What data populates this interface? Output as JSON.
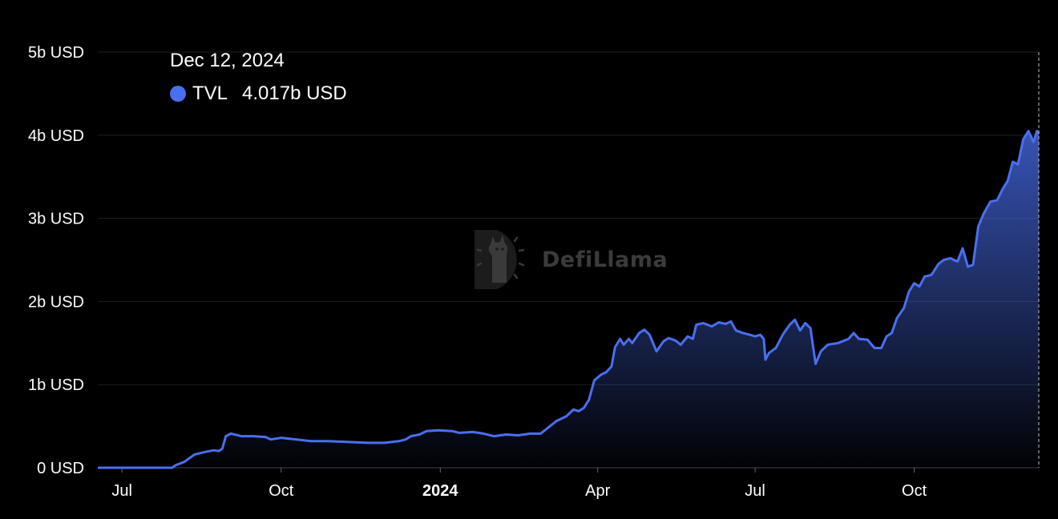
{
  "chart_data": {
    "type": "area",
    "title": "",
    "xlabel": "",
    "ylabel": "",
    "y_unit": "USD",
    "ylim": [
      0,
      5
    ],
    "y_ticks": [
      {
        "value": 0,
        "label": "0 USD"
      },
      {
        "value": 1,
        "label": "1b USD"
      },
      {
        "value": 2,
        "label": "2b USD"
      },
      {
        "value": 3,
        "label": "3b USD"
      },
      {
        "value": 4,
        "label": "4b USD"
      },
      {
        "value": 5,
        "label": "5b USD"
      }
    ],
    "xlim": [
      "2023-06-17",
      "2024-12-12"
    ],
    "x_ticks": [
      {
        "date": "2023-07-01",
        "label": "Jul",
        "bold": false
      },
      {
        "date": "2023-10-01",
        "label": "Oct",
        "bold": false
      },
      {
        "date": "2024-01-01",
        "label": "2024",
        "bold": true
      },
      {
        "date": "2024-04-01",
        "label": "Apr",
        "bold": false
      },
      {
        "date": "2024-07-01",
        "label": "Jul",
        "bold": false
      },
      {
        "date": "2024-10-01",
        "label": "Oct",
        "bold": false
      }
    ],
    "grid": "horizontal",
    "series": [
      {
        "name": "TVL",
        "color": "#4a6ff0",
        "points": [
          [
            "2023-06-17",
            0.0
          ],
          [
            "2023-07-30",
            0.0
          ],
          [
            "2023-08-01",
            0.03
          ],
          [
            "2023-08-06",
            0.07
          ],
          [
            "2023-08-12",
            0.16
          ],
          [
            "2023-08-18",
            0.19
          ],
          [
            "2023-08-23",
            0.21
          ],
          [
            "2023-08-26",
            0.2
          ],
          [
            "2023-08-28",
            0.23
          ],
          [
            "2023-08-30",
            0.38
          ],
          [
            "2023-09-02",
            0.41
          ],
          [
            "2023-09-08",
            0.38
          ],
          [
            "2023-09-15",
            0.38
          ],
          [
            "2023-09-22",
            0.37
          ],
          [
            "2023-09-25",
            0.34
          ],
          [
            "2023-10-01",
            0.36
          ],
          [
            "2023-10-10",
            0.34
          ],
          [
            "2023-10-18",
            0.32
          ],
          [
            "2023-10-28",
            0.32
          ],
          [
            "2023-11-08",
            0.31
          ],
          [
            "2023-11-20",
            0.3
          ],
          [
            "2023-11-30",
            0.3
          ],
          [
            "2023-12-08",
            0.32
          ],
          [
            "2023-12-12",
            0.34
          ],
          [
            "2023-12-15",
            0.38
          ],
          [
            "2023-12-20",
            0.4
          ],
          [
            "2023-12-24",
            0.44
          ],
          [
            "2023-12-31",
            0.45
          ],
          [
            "2024-01-08",
            0.44
          ],
          [
            "2024-01-12",
            0.42
          ],
          [
            "2024-01-20",
            0.43
          ],
          [
            "2024-01-26",
            0.41
          ],
          [
            "2024-02-01",
            0.38
          ],
          [
            "2024-02-08",
            0.4
          ],
          [
            "2024-02-15",
            0.39
          ],
          [
            "2024-02-22",
            0.41
          ],
          [
            "2024-02-28",
            0.41
          ],
          [
            "2024-03-02",
            0.46
          ],
          [
            "2024-03-08",
            0.56
          ],
          [
            "2024-03-14",
            0.62
          ],
          [
            "2024-03-18",
            0.7
          ],
          [
            "2024-03-21",
            0.68
          ],
          [
            "2024-03-24",
            0.72
          ],
          [
            "2024-03-27",
            0.82
          ],
          [
            "2024-03-30",
            1.05
          ],
          [
            "2024-04-03",
            1.12
          ],
          [
            "2024-04-06",
            1.15
          ],
          [
            "2024-04-09",
            1.22
          ],
          [
            "2024-04-11",
            1.45
          ],
          [
            "2024-04-14",
            1.55
          ],
          [
            "2024-04-16",
            1.48
          ],
          [
            "2024-04-19",
            1.55
          ],
          [
            "2024-04-21",
            1.5
          ],
          [
            "2024-04-25",
            1.62
          ],
          [
            "2024-04-28",
            1.66
          ],
          [
            "2024-05-01",
            1.6
          ],
          [
            "2024-05-05",
            1.4
          ],
          [
            "2024-05-09",
            1.52
          ],
          [
            "2024-05-12",
            1.56
          ],
          [
            "2024-05-16",
            1.53
          ],
          [
            "2024-05-19",
            1.48
          ],
          [
            "2024-05-23",
            1.58
          ],
          [
            "2024-05-26",
            1.55
          ],
          [
            "2024-05-28",
            1.72
          ],
          [
            "2024-06-01",
            1.74
          ],
          [
            "2024-06-06",
            1.7
          ],
          [
            "2024-06-10",
            1.75
          ],
          [
            "2024-06-14",
            1.73
          ],
          [
            "2024-06-17",
            1.76
          ],
          [
            "2024-06-20",
            1.65
          ],
          [
            "2024-06-24",
            1.62
          ],
          [
            "2024-06-28",
            1.6
          ],
          [
            "2024-07-01",
            1.58
          ],
          [
            "2024-07-04",
            1.6
          ],
          [
            "2024-07-06",
            1.55
          ],
          [
            "2024-07-07",
            1.3
          ],
          [
            "2024-07-09",
            1.38
          ],
          [
            "2024-07-13",
            1.44
          ],
          [
            "2024-07-17",
            1.6
          ],
          [
            "2024-07-21",
            1.72
          ],
          [
            "2024-07-24",
            1.78
          ],
          [
            "2024-07-27",
            1.65
          ],
          [
            "2024-07-30",
            1.74
          ],
          [
            "2024-08-02",
            1.68
          ],
          [
            "2024-08-05",
            1.25
          ],
          [
            "2024-08-08",
            1.4
          ],
          [
            "2024-08-12",
            1.48
          ],
          [
            "2024-08-18",
            1.5
          ],
          [
            "2024-08-24",
            1.55
          ],
          [
            "2024-08-27",
            1.62
          ],
          [
            "2024-08-30",
            1.55
          ],
          [
            "2024-09-04",
            1.54
          ],
          [
            "2024-09-08",
            1.44
          ],
          [
            "2024-09-12",
            1.44
          ],
          [
            "2024-09-15",
            1.58
          ],
          [
            "2024-09-18",
            1.62
          ],
          [
            "2024-09-21",
            1.8
          ],
          [
            "2024-09-25",
            1.92
          ],
          [
            "2024-09-28",
            2.12
          ],
          [
            "2024-10-01",
            2.22
          ],
          [
            "2024-10-04",
            2.18
          ],
          [
            "2024-10-07",
            2.3
          ],
          [
            "2024-10-11",
            2.32
          ],
          [
            "2024-10-15",
            2.45
          ],
          [
            "2024-10-18",
            2.5
          ],
          [
            "2024-10-22",
            2.52
          ],
          [
            "2024-10-26",
            2.48
          ],
          [
            "2024-10-29",
            2.64
          ],
          [
            "2024-11-01",
            2.42
          ],
          [
            "2024-11-04",
            2.44
          ],
          [
            "2024-11-07",
            2.9
          ],
          [
            "2024-11-10",
            3.05
          ],
          [
            "2024-11-14",
            3.2
          ],
          [
            "2024-11-18",
            3.22
          ],
          [
            "2024-11-21",
            3.35
          ],
          [
            "2024-11-24",
            3.45
          ],
          [
            "2024-11-27",
            3.68
          ],
          [
            "2024-11-30",
            3.65
          ],
          [
            "2024-12-03",
            3.95
          ],
          [
            "2024-12-06",
            4.05
          ],
          [
            "2024-12-09",
            3.92
          ],
          [
            "2024-12-11",
            4.05
          ],
          [
            "2024-12-12",
            4.017
          ]
        ]
      }
    ]
  },
  "tooltip": {
    "date": "Dec 12, 2024",
    "series_name": "TVL",
    "value": "4.017b USD",
    "dot_color": "#4a6ff0"
  },
  "watermark": {
    "text": "DefiLlama",
    "icon": "llama-logo-icon"
  }
}
